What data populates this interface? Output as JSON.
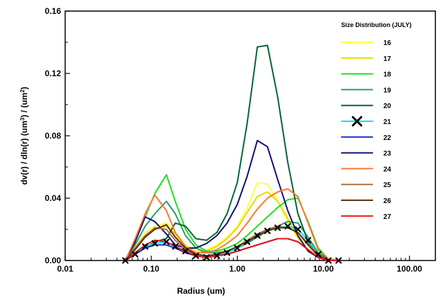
{
  "chart_data": {
    "type": "line",
    "xlabel": "Radius (um)",
    "ylabel_parts": [
      "dv(r) / dln(r) (um",
      "3",
      ") / (um",
      "2",
      ")"
    ],
    "x_scale": "log",
    "xlim": [
      0.01,
      200
    ],
    "ylim": [
      0,
      0.16
    ],
    "x_ticks": [
      0.01,
      0.1,
      1,
      10,
      100
    ],
    "x_tick_labels": [
      "0.01",
      "0.10",
      "1.00",
      "10.00",
      "100.00"
    ],
    "y_ticks": [
      0,
      0.04,
      0.08,
      0.12,
      0.16
    ],
    "y_tick_labels": [
      "0.00",
      "0.04",
      "0.08",
      "0.12",
      "0.16"
    ],
    "grid": false,
    "legend": {
      "title": "Size Distribution (JULY)",
      "position": "right"
    },
    "x": [
      0.05,
      0.065,
      0.085,
      0.11,
      0.15,
      0.19,
      0.25,
      0.33,
      0.44,
      0.58,
      0.76,
      1.0,
      1.3,
      1.71,
      2.24,
      2.94,
      3.86,
      5.06,
      6.64,
      8.71,
      11.43,
      15.0
    ],
    "series": [
      {
        "name": "16",
        "color": "#ffff44",
        "marker": "none",
        "values": [
          0.0,
          0.008,
          0.018,
          0.022,
          0.024,
          0.018,
          0.01,
          0.006,
          0.007,
          0.01,
          0.015,
          0.022,
          0.034,
          0.05,
          0.049,
          0.038,
          0.025,
          0.014,
          0.006,
          0.002,
          0.0,
          0.0
        ]
      },
      {
        "name": "17",
        "color": "#e8d800",
        "marker": "none",
        "values": [
          0.0,
          0.007,
          0.016,
          0.02,
          0.022,
          0.017,
          0.009,
          0.005,
          0.006,
          0.009,
          0.014,
          0.021,
          0.031,
          0.041,
          0.044,
          0.038,
          0.027,
          0.015,
          0.006,
          0.002,
          0.0,
          0.0
        ]
      },
      {
        "name": "18",
        "color": "#22dd22",
        "marker": "none",
        "values": [
          0.0,
          0.012,
          0.028,
          0.043,
          0.055,
          0.038,
          0.02,
          0.01,
          0.006,
          0.006,
          0.008,
          0.011,
          0.016,
          0.022,
          0.028,
          0.034,
          0.039,
          0.04,
          0.025,
          0.008,
          0.001,
          0.0
        ]
      },
      {
        "name": "19",
        "color": "#2a9d6f",
        "marker": "none",
        "values": [
          0.0,
          0.01,
          0.022,
          0.03,
          0.038,
          0.03,
          0.016,
          0.008,
          0.005,
          0.005,
          0.006,
          0.008,
          0.011,
          0.015,
          0.019,
          0.022,
          0.025,
          0.024,
          0.015,
          0.005,
          0.001,
          0.0
        ]
      },
      {
        "name": "20",
        "color": "#006633",
        "marker": "none",
        "values": [
          0.0,
          0.004,
          0.008,
          0.012,
          0.014,
          0.024,
          0.022,
          0.014,
          0.013,
          0.018,
          0.03,
          0.05,
          0.088,
          0.137,
          0.138,
          0.105,
          0.063,
          0.03,
          0.012,
          0.004,
          0.001,
          0.0
        ]
      },
      {
        "name": "21",
        "color": "#00e5ff",
        "marker": "x",
        "values": [
          0.0,
          0.004,
          0.009,
          0.011,
          0.012,
          0.009,
          0.006,
          0.003,
          0.002,
          0.003,
          0.005,
          0.008,
          0.012,
          0.016,
          0.019,
          0.021,
          0.022,
          0.02,
          0.013,
          0.004,
          0.0,
          0.0
        ]
      },
      {
        "name": "22",
        "color": "#1a2bd6",
        "marker": "none",
        "values": [
          0.0,
          0.004,
          0.008,
          0.01,
          0.01,
          0.008,
          0.005,
          0.003,
          0.002,
          0.003,
          0.004,
          0.006,
          0.008,
          0.01,
          0.012,
          0.014,
          0.014,
          0.012,
          0.007,
          0.002,
          0.0,
          0.0
        ]
      },
      {
        "name": "23",
        "color": "#101070",
        "marker": "none",
        "values": [
          0.0,
          0.012,
          0.028,
          0.025,
          0.017,
          0.01,
          0.008,
          0.008,
          0.011,
          0.016,
          0.024,
          0.036,
          0.054,
          0.077,
          0.073,
          0.052,
          0.032,
          0.016,
          0.006,
          0.002,
          0.0,
          0.0
        ]
      },
      {
        "name": "24",
        "color": "#ff7733",
        "marker": "none",
        "values": [
          0.0,
          0.014,
          0.03,
          0.042,
          0.032,
          0.018,
          0.009,
          0.005,
          0.005,
          0.007,
          0.011,
          0.016,
          0.024,
          0.033,
          0.04,
          0.044,
          0.046,
          0.041,
          0.024,
          0.007,
          0.001,
          0.0
        ]
      },
      {
        "name": "25",
        "color": "#b07040",
        "marker": "none",
        "values": [
          0.0,
          0.008,
          0.016,
          0.021,
          0.02,
          0.013,
          0.007,
          0.004,
          0.003,
          0.004,
          0.006,
          0.009,
          0.013,
          0.017,
          0.02,
          0.022,
          0.021,
          0.018,
          0.011,
          0.004,
          0.0,
          0.0
        ]
      },
      {
        "name": "26",
        "color": "#5a3310",
        "marker": "none",
        "values": [
          0.0,
          0.007,
          0.015,
          0.02,
          0.023,
          0.015,
          0.008,
          0.004,
          0.003,
          0.004,
          0.006,
          0.009,
          0.012,
          0.016,
          0.019,
          0.021,
          0.021,
          0.018,
          0.01,
          0.003,
          0.0,
          0.0
        ]
      },
      {
        "name": "27",
        "color": "#ee1111",
        "marker": "none",
        "values": [
          0.0,
          0.005,
          0.01,
          0.013,
          0.012,
          0.009,
          0.006,
          0.003,
          0.002,
          0.003,
          0.004,
          0.006,
          0.008,
          0.01,
          0.012,
          0.014,
          0.014,
          0.012,
          0.007,
          0.002,
          0.0,
          0.0
        ]
      }
    ]
  }
}
